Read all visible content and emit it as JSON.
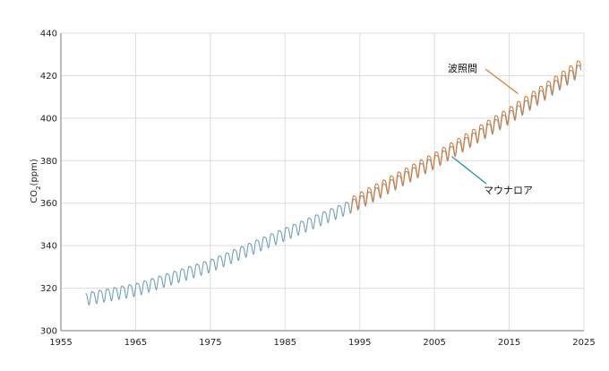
{
  "chart_data": {
    "type": "line",
    "title": "",
    "xlabel": "",
    "ylabel_main": "CO",
    "ylabel_sub": "2",
    "ylabel_unit": "(ppm)",
    "xlim": [
      1955,
      2025
    ],
    "ylim": [
      300,
      440
    ],
    "x_ticks": [
      1955,
      1965,
      1975,
      1985,
      1995,
      2005,
      2015,
      2025
    ],
    "x_tick_labels": [
      "1955",
      "1965",
      "1975",
      "1985",
      "1995",
      "2005",
      "2015",
      "2025"
    ],
    "y_ticks": [
      300,
      320,
      340,
      360,
      380,
      400,
      420,
      440
    ],
    "y_tick_labels": [
      "300",
      "320",
      "340",
      "360",
      "380",
      "400",
      "420",
      "440"
    ],
    "grid": true,
    "legend": "none",
    "series": [
      {
        "name": "マウナロア",
        "color": "#6f9fc0",
        "x_range": [
          1958.3,
          2024.6
        ],
        "trend_points": [
          [
            1958.3,
            315.5
          ],
          [
            1965,
            319.8
          ],
          [
            1975,
            331.1
          ],
          [
            1985,
            346.0
          ],
          [
            1995,
            360.8
          ],
          [
            2005,
            379.8
          ],
          [
            2015,
            400.8
          ],
          [
            2024.6,
            423.5
          ]
        ],
        "seasonal_amplitude": 3.2
      },
      {
        "name": "波照間",
        "color": "#e07a2c",
        "x_range": [
          1993.8,
          2024.6
        ],
        "trend_points": [
          [
            1993.8,
            360.0
          ],
          [
            2005,
            381.0
          ],
          [
            2015,
            402.3
          ],
          [
            2024.6,
            425.2
          ]
        ],
        "seasonal_amplitude": 3.8
      }
    ],
    "annotations": [
      {
        "text": "波照間",
        "series": "波照間",
        "color": "#e07a2c",
        "point": [
          2016.2,
          411.5
        ]
      },
      {
        "text": "マウナロア",
        "series": "マウナロア",
        "color": "#1a8fb0",
        "point": [
          2007.3,
          382.0
        ]
      }
    ]
  }
}
